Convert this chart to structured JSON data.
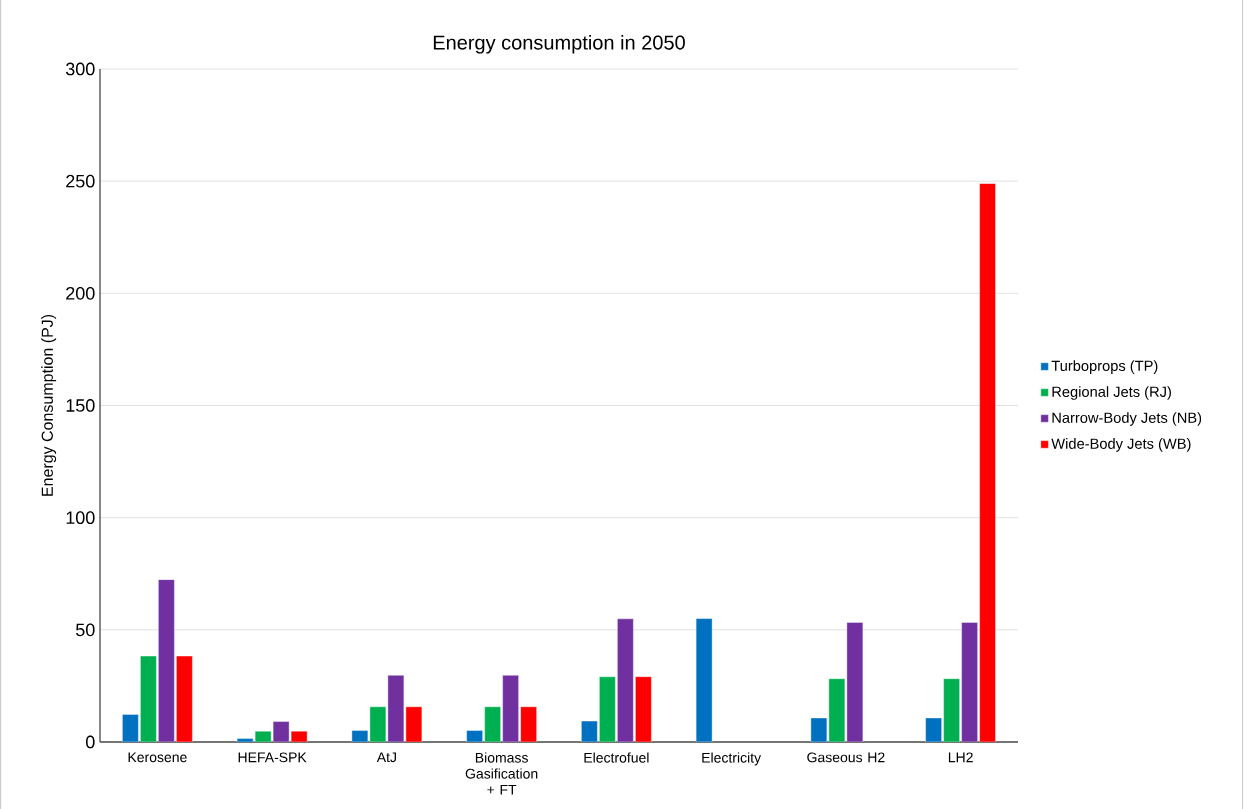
{
  "chart_data": {
    "type": "bar",
    "title": "Energy consumption in 2050",
    "ylabel": "Energy Consumption (PJ)",
    "categories": [
      "Kerosene",
      "HEFA-SPK",
      "AtJ",
      "Biomass Gasification + FT",
      "Electrofuel",
      "Electricity",
      "Gaseous H2",
      "LH2"
    ],
    "series": [
      {
        "name": "Turboprops (TP)",
        "color": "#0070c0",
        "values": [
          12.3,
          1.5,
          5.1,
          5.1,
          9.3,
          55,
          10.7,
          10.7
        ]
      },
      {
        "name": "Regional Jets (RJ)",
        "color": "#00b050",
        "values": [
          38.3,
          4.8,
          15.7,
          15.7,
          29.1,
          null,
          28.2,
          28.2
        ]
      },
      {
        "name": "Narrow-Body Jets (NB)",
        "color": "#7030a0",
        "values": [
          72.4,
          9.1,
          29.7,
          29.7,
          54.9,
          null,
          53.3,
          53.3
        ]
      },
      {
        "name": "Wide-Body Jets (WB)",
        "color": "#ff0000",
        "values": [
          38.3,
          4.8,
          15.7,
          15.7,
          29.1,
          null,
          null,
          249
        ]
      }
    ],
    "ylim": [
      0,
      300
    ],
    "yticks": [
      0,
      50,
      100,
      150,
      200,
      250,
      300
    ],
    "grid": "y",
    "legend": "right"
  }
}
